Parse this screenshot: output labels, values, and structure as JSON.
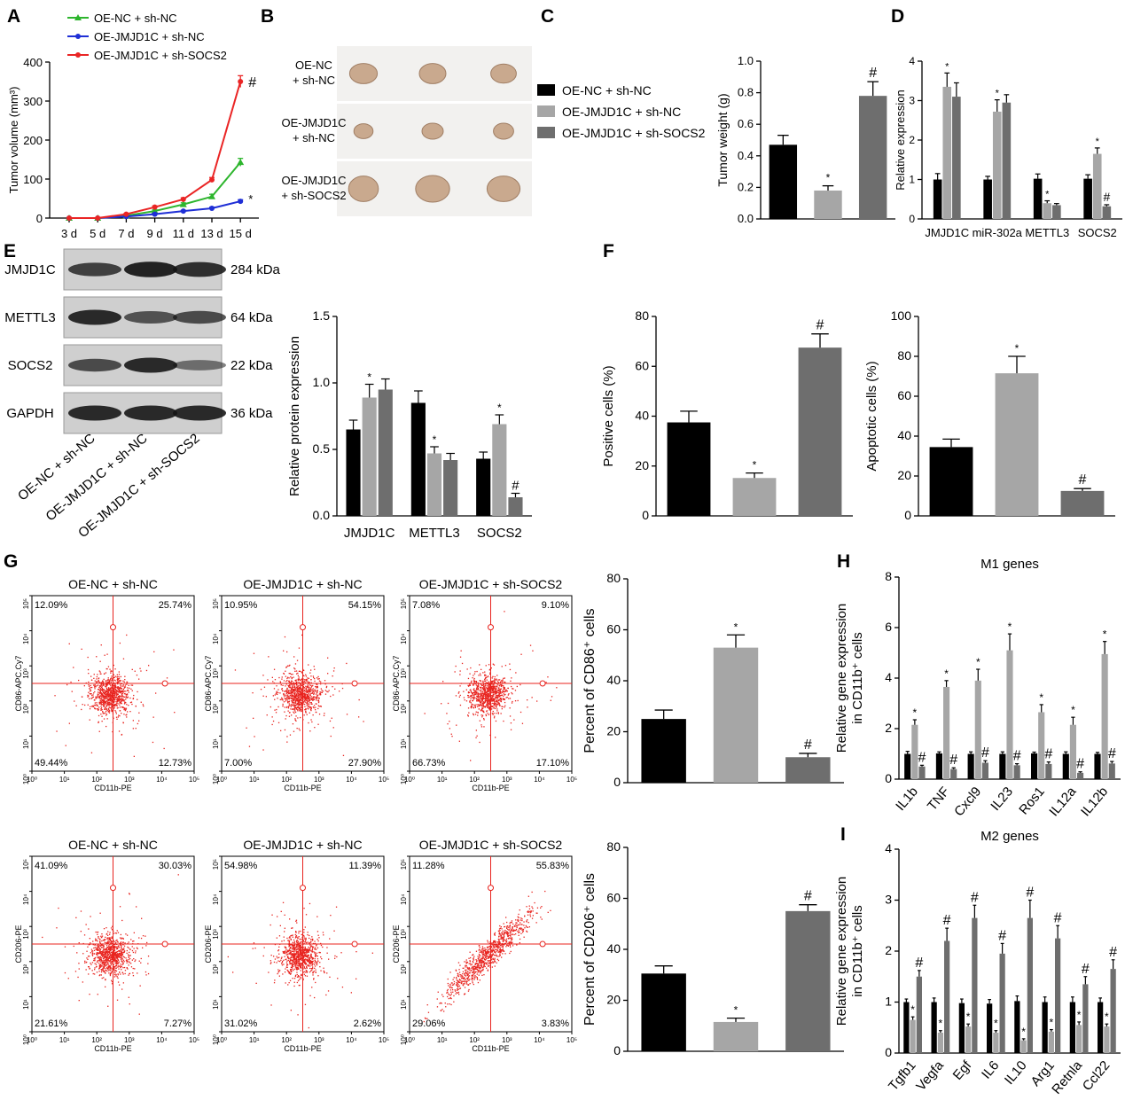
{
  "panels": {
    "A": "A",
    "B": "B",
    "C": "C",
    "D": "D",
    "E": "E",
    "F": "F",
    "G": "G",
    "H": "H",
    "I": "I"
  },
  "groups": [
    "OE-NC + sh-NC",
    "OE-JMJD1C + sh-NC",
    "OE-JMJD1C + sh-SOCS2"
  ],
  "colors": {
    "black": "#000000",
    "light": "#a6a6a6",
    "dark": "#6e6e6e",
    "green": "#2db52d",
    "blue": "#1f2fd6",
    "red": "#ea2525",
    "flow": "#e8231e"
  },
  "photo_labels": [
    [
      "OE-NC",
      "+ sh-NC"
    ],
    [
      "OE-JMJD1C",
      "+ sh-NC"
    ],
    [
      "OE-JMJD1C",
      "+ sh-SOCS2"
    ]
  ],
  "blot": {
    "rows": [
      {
        "name": "JMJD1C",
        "kda": "284 kDa",
        "int": [
          0.7,
          0.95,
          0.85
        ]
      },
      {
        "name": "METTL3",
        "kda": "64 kDa",
        "int": [
          0.9,
          0.55,
          0.6
        ]
      },
      {
        "name": "SOCS2",
        "kda": "22 kDa",
        "int": [
          0.6,
          0.9,
          0.3
        ]
      },
      {
        "name": "GAPDH",
        "kda": "36 kDa",
        "int": [
          0.9,
          0.9,
          0.9
        ]
      }
    ]
  },
  "flow": {
    "rows": [
      {
        "ylabel": "CD86-APC.Cy7",
        "xlabel": "CD11b-PE",
        "plots": [
          {
            "q": [
              "12.09%",
              "25.74%",
              "49.44%",
              "12.73%"
            ],
            "pattern": "round"
          },
          {
            "q": [
              "10.95%",
              "54.15%",
              "7.00%",
              "27.90%"
            ],
            "pattern": "round"
          },
          {
            "q": [
              "7.08%",
              "9.10%",
              "66.73%",
              "17.10%"
            ],
            "pattern": "round"
          }
        ]
      },
      {
        "ylabel": "CD206-PE",
        "xlabel": "CD11b-PE",
        "plots": [
          {
            "q": [
              "41.09%",
              "30.03%",
              "21.61%",
              "7.27%"
            ],
            "pattern": "round"
          },
          {
            "q": [
              "54.98%",
              "11.39%",
              "31.02%",
              "2.62%"
            ],
            "pattern": "round"
          },
          {
            "q": [
              "11.28%",
              "55.83%",
              "29.06%",
              "3.83%"
            ],
            "pattern": "diag"
          }
        ]
      }
    ]
  },
  "chart_data": [
    {
      "panel": "A",
      "type": "line",
      "x": [
        "3 d",
        "5 d",
        "7 d",
        "9 d",
        "11 d",
        "13 d",
        "15 d"
      ],
      "ylabel": "Tumor volume (mm³)",
      "ylim": [
        0,
        400
      ],
      "yticks": [
        0,
        100,
        200,
        300,
        400
      ],
      "series": [
        {
          "name": "OE-NC + sh-NC",
          "color": "green",
          "marker": "triangle",
          "values": [
            0,
            0,
            6,
            18,
            35,
            55,
            143
          ],
          "err": [
            0,
            0,
            2,
            3,
            4,
            6,
            10
          ]
        },
        {
          "name": "OE-JMJD1C + sh-NC",
          "color": "blue",
          "marker": "circle",
          "values": [
            0,
            0,
            4,
            10,
            18,
            25,
            43
          ],
          "err": [
            0,
            0,
            1,
            2,
            2,
            3,
            4
          ]
        },
        {
          "name": "OE-JMJD1C + sh-SOCS2",
          "color": "red",
          "marker": "circle",
          "values": [
            0,
            0,
            10,
            28,
            48,
            98,
            350
          ],
          "err": [
            0,
            0,
            2,
            3,
            4,
            6,
            15
          ]
        }
      ],
      "marks": [
        {
          "series": 2,
          "text": "#"
        },
        {
          "series": 1,
          "text": "*"
        }
      ]
    },
    {
      "panel": "C",
      "type": "bar",
      "categories": [
        "OE-NC + sh-NC",
        "OE-JMJD1C + sh-NC",
        "OE-JMJD1C + sh-SOCS2"
      ],
      "values": [
        0.47,
        0.18,
        0.78
      ],
      "err": [
        0.06,
        0.03,
        0.09
      ],
      "marks": [
        "",
        "*",
        "#"
      ],
      "ylabel": "Tumor weight (g)",
      "ylim": [
        0,
        1.0
      ],
      "yticks": [
        "0.0",
        "0.2",
        "0.4",
        "0.6",
        "0.8",
        "1.0"
      ]
    },
    {
      "panel": "D",
      "type": "bar",
      "categories": [
        "JMJD1C",
        "miR-302a",
        "METTL3",
        "SOCS2"
      ],
      "ylabel": "Relative expression",
      "ylim": [
        0,
        4
      ],
      "yticks": [
        "0",
        "1",
        "2",
        "3",
        "4"
      ],
      "values": [
        [
          1.0,
          3.35,
          3.1
        ],
        [
          1.0,
          2.72,
          2.95
        ],
        [
          1.02,
          0.4,
          0.35
        ],
        [
          1.02,
          1.65,
          0.32
        ]
      ],
      "err": [
        [
          0.15,
          0.35,
          0.35
        ],
        [
          0.08,
          0.3,
          0.2
        ],
        [
          0.12,
          0.06,
          0.04
        ],
        [
          0.1,
          0.15,
          0.04
        ]
      ],
      "marks": [
        [
          "",
          "*",
          ""
        ],
        [
          "",
          "*",
          ""
        ],
        [
          "",
          "*",
          ""
        ],
        [
          "",
          "*",
          "#"
        ]
      ]
    },
    {
      "panel": "E",
      "type": "bar",
      "categories": [
        "JMJD1C",
        "METTL3",
        "SOCS2"
      ],
      "ylabel": "Relative protein expression",
      "ylim": [
        0,
        1.5
      ],
      "yticks": [
        "0.0",
        "0.5",
        "1.0",
        "1.5"
      ],
      "values": [
        [
          0.65,
          0.89,
          0.95
        ],
        [
          0.85,
          0.47,
          0.42
        ],
        [
          0.43,
          0.69,
          0.14
        ]
      ],
      "err": [
        [
          0.07,
          0.1,
          0.08
        ],
        [
          0.09,
          0.05,
          0.05
        ],
        [
          0.05,
          0.07,
          0.03
        ]
      ],
      "marks": [
        [
          "",
          "*",
          ""
        ],
        [
          "",
          "*",
          ""
        ],
        [
          "",
          "*",
          "#"
        ]
      ]
    },
    {
      "panel": "F1",
      "type": "bar",
      "categories": [
        "OE-NC + sh-NC",
        "OE-JMJD1C + sh-NC",
        "OE-JMJD1C + sh-SOCS2"
      ],
      "values": [
        37.5,
        15.2,
        67.5
      ],
      "err": [
        4.5,
        2,
        5.5
      ],
      "marks": [
        "",
        "*",
        "#"
      ],
      "ylabel": "Positive cells (%)",
      "ylim": [
        0,
        80
      ],
      "yticks": [
        "0",
        "20",
        "40",
        "60",
        "80"
      ]
    },
    {
      "panel": "F2",
      "type": "bar",
      "categories": [
        "OE-NC + sh-NC",
        "OE-JMJD1C + sh-NC",
        "OE-JMJD1C + sh-SOCS2"
      ],
      "values": [
        34.5,
        71.5,
        12.5
      ],
      "err": [
        4,
        8.5,
        1.2
      ],
      "marks": [
        "",
        "*",
        "#"
      ],
      "ylabel": "Apoptotic cells (%)",
      "ylim": [
        0,
        100
      ],
      "yticks": [
        "0",
        "20",
        "40",
        "60",
        "80",
        "100"
      ]
    },
    {
      "panel": "G1",
      "type": "bar",
      "categories": [
        "OE-NC + sh-NC",
        "OE-JMJD1C + sh-NC",
        "OE-JMJD1C + sh-SOCS2"
      ],
      "values": [
        25,
        53,
        10
      ],
      "err": [
        3.5,
        5,
        1.5
      ],
      "marks": [
        "",
        "*",
        "#"
      ],
      "ylabel": "Percent of CD86⁺ cells",
      "ylim": [
        0,
        80
      ],
      "yticks": [
        "0",
        "20",
        "40",
        "60",
        "80"
      ]
    },
    {
      "panel": "G2",
      "type": "bar",
      "categories": [
        "OE-NC + sh-NC",
        "OE-JMJD1C + sh-NC",
        "OE-JMJD1C + sh-SOCS2"
      ],
      "values": [
        30.5,
        11.5,
        55
      ],
      "err": [
        3,
        1.5,
        2.5
      ],
      "marks": [
        "",
        "*",
        "#"
      ],
      "ylabel": "Percent of CD206⁺ cells",
      "ylim": [
        0,
        80
      ],
      "yticks": [
        "0",
        "20",
        "40",
        "60",
        "80"
      ]
    },
    {
      "panel": "H",
      "type": "bar",
      "title": "M1 genes",
      "categories": [
        "IL1b",
        "TNF",
        "Cxcl9",
        "IL23",
        "Ros1",
        "IL12a",
        "IL12b"
      ],
      "ylabel": "Relative gene expression in CD11b⁺ cells",
      "ylim": [
        0,
        8
      ],
      "yticks": [
        "0",
        "2",
        "4",
        "6",
        "8"
      ],
      "values": [
        [
          1.0,
          2.15,
          0.5
        ],
        [
          1.02,
          3.65,
          0.4
        ],
        [
          1.0,
          3.9,
          0.65
        ],
        [
          1.0,
          5.1,
          0.55
        ],
        [
          1.02,
          2.65,
          0.6
        ],
        [
          1.0,
          2.15,
          0.25
        ],
        [
          1.0,
          4.95,
          0.62
        ]
      ],
      "err": [
        [
          0.1,
          0.2,
          0.05
        ],
        [
          0.06,
          0.25,
          0.05
        ],
        [
          0.08,
          0.45,
          0.08
        ],
        [
          0.08,
          0.65,
          0.06
        ],
        [
          0.05,
          0.3,
          0.08
        ],
        [
          0.08,
          0.3,
          0.04
        ],
        [
          0.06,
          0.5,
          0.08
        ]
      ],
      "marks": [
        [
          "",
          "*",
          "#"
        ],
        [
          "",
          "*",
          "#"
        ],
        [
          "",
          "*",
          "#"
        ],
        [
          "",
          "*",
          "#"
        ],
        [
          "",
          "*",
          "#"
        ],
        [
          "",
          "*",
          "#"
        ],
        [
          "",
          "*",
          "#"
        ]
      ]
    },
    {
      "panel": "I",
      "type": "bar",
      "title": "M2 genes",
      "categories": [
        "Tgfb1",
        "Vegfa",
        "Egf",
        "IL6",
        "IL10",
        "Arg1",
        "Retnla",
        "Ccl22"
      ],
      "ylabel": "Relative gene expression in CD11b⁺ cells",
      "ylim": [
        0,
        4
      ],
      "yticks": [
        "0",
        "1",
        "2",
        "3",
        "4"
      ],
      "values": [
        [
          1.0,
          0.65,
          1.5
        ],
        [
          1.0,
          0.4,
          2.2
        ],
        [
          0.98,
          0.52,
          2.65
        ],
        [
          0.97,
          0.4,
          1.95
        ],
        [
          1.02,
          0.25,
          2.65
        ],
        [
          1.0,
          0.42,
          2.25
        ],
        [
          1.0,
          0.55,
          1.35
        ],
        [
          1.0,
          0.52,
          1.65
        ]
      ],
      "err": [
        [
          0.06,
          0.06,
          0.12
        ],
        [
          0.08,
          0.04,
          0.25
        ],
        [
          0.08,
          0.05,
          0.25
        ],
        [
          0.08,
          0.04,
          0.2
        ],
        [
          0.1,
          0.03,
          0.35
        ],
        [
          0.1,
          0.04,
          0.25
        ],
        [
          0.1,
          0.06,
          0.15
        ],
        [
          0.08,
          0.05,
          0.18
        ]
      ],
      "marks": [
        [
          "",
          "*",
          "#"
        ],
        [
          "",
          "*",
          "#"
        ],
        [
          "",
          "*",
          "#"
        ],
        [
          "",
          "*",
          "#"
        ],
        [
          "",
          "*",
          "#"
        ],
        [
          "",
          "*",
          "#"
        ],
        [
          "",
          "*",
          "#"
        ],
        [
          "",
          "*",
          "#"
        ]
      ]
    }
  ]
}
